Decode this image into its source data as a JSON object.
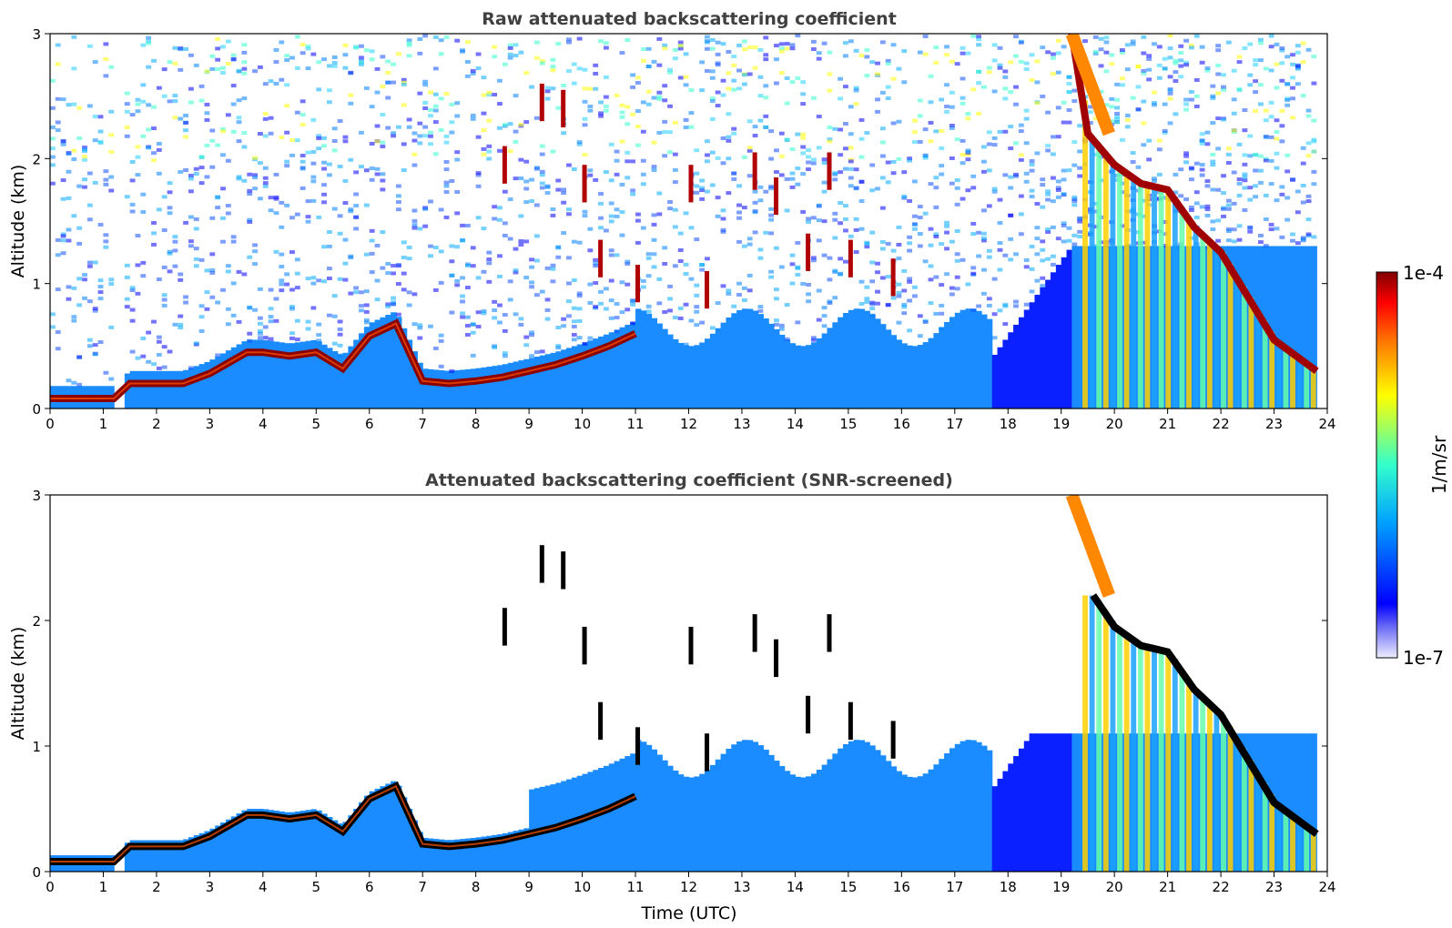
{
  "chart_data": [
    {
      "type": "heatmap",
      "title": "Raw attenuated backscattering coefficient",
      "xlabel": "",
      "ylabel": "Altitude (km)",
      "xlim": [
        0,
        24
      ],
      "ylim": [
        0,
        3
      ],
      "xticks": [
        0,
        1,
        2,
        3,
        4,
        5,
        6,
        7,
        8,
        9,
        10,
        11,
        12,
        13,
        14,
        15,
        16,
        17,
        18,
        19,
        20,
        21,
        22,
        23,
        24
      ],
      "yticks": [
        0,
        1,
        2,
        3
      ],
      "screened": false,
      "layer_height_km": {
        "x": [
          0,
          0.5,
          1.2,
          1.5,
          2,
          2.5,
          3,
          3.7,
          4,
          4.5,
          5,
          5.5,
          6,
          6.5,
          7,
          7.5,
          8,
          8.5,
          9,
          9.5,
          10,
          10.5,
          11
        ],
        "y": [
          0.08,
          0.08,
          0.08,
          0.2,
          0.2,
          0.2,
          0.28,
          0.45,
          0.45,
          0.42,
          0.45,
          0.32,
          0.58,
          0.68,
          0.22,
          0.2,
          0.22,
          0.25,
          0.3,
          0.35,
          0.42,
          0.5,
          0.6
        ]
      },
      "falling_layer_km": {
        "x": [
          19.2,
          19.5,
          20,
          20.5,
          21,
          21.5,
          22,
          22.5,
          23,
          23.8
        ],
        "y": [
          3.0,
          2.2,
          1.95,
          1.8,
          1.75,
          1.45,
          1.25,
          0.9,
          0.55,
          0.3
        ]
      }
    },
    {
      "type": "heatmap",
      "title": "Attenuated backscattering coefficient (SNR-screened)",
      "xlabel": "Time (UTC)",
      "ylabel": "Altitude (km)",
      "xlim": [
        0,
        24
      ],
      "ylim": [
        0,
        3
      ],
      "xticks": [
        0,
        1,
        2,
        3,
        4,
        5,
        6,
        7,
        8,
        9,
        10,
        11,
        12,
        13,
        14,
        15,
        16,
        17,
        18,
        19,
        20,
        21,
        22,
        23,
        24
      ],
      "yticks": [
        0,
        1,
        2,
        3
      ],
      "screened": true,
      "layer_height_km": {
        "x": [
          0,
          0.5,
          1.2,
          1.5,
          2,
          2.5,
          3,
          3.7,
          4,
          4.5,
          5,
          5.5,
          6,
          6.5,
          7,
          7.5,
          8,
          8.5,
          9,
          9.5,
          10,
          10.5,
          11
        ],
        "y": [
          0.08,
          0.08,
          0.08,
          0.2,
          0.2,
          0.2,
          0.28,
          0.45,
          0.45,
          0.42,
          0.45,
          0.32,
          0.58,
          0.68,
          0.22,
          0.2,
          0.22,
          0.25,
          0.3,
          0.35,
          0.42,
          0.5,
          0.6
        ]
      },
      "falling_layer_km": {
        "x": [
          19.6,
          20,
          20.5,
          21,
          21.5,
          22,
          22.5,
          23,
          23.8
        ],
        "y": [
          2.2,
          1.95,
          1.8,
          1.75,
          1.45,
          1.25,
          0.9,
          0.55,
          0.3
        ]
      }
    }
  ],
  "colorbar": {
    "label": "1/m/sr",
    "max_label": "1e-4",
    "min_label": "1e-7",
    "colors": [
      "#eeeeff",
      "#0000ff",
      "#00aaff",
      "#33ffcc",
      "#ffff00",
      "#ff7700",
      "#ff0000",
      "#800000"
    ]
  }
}
